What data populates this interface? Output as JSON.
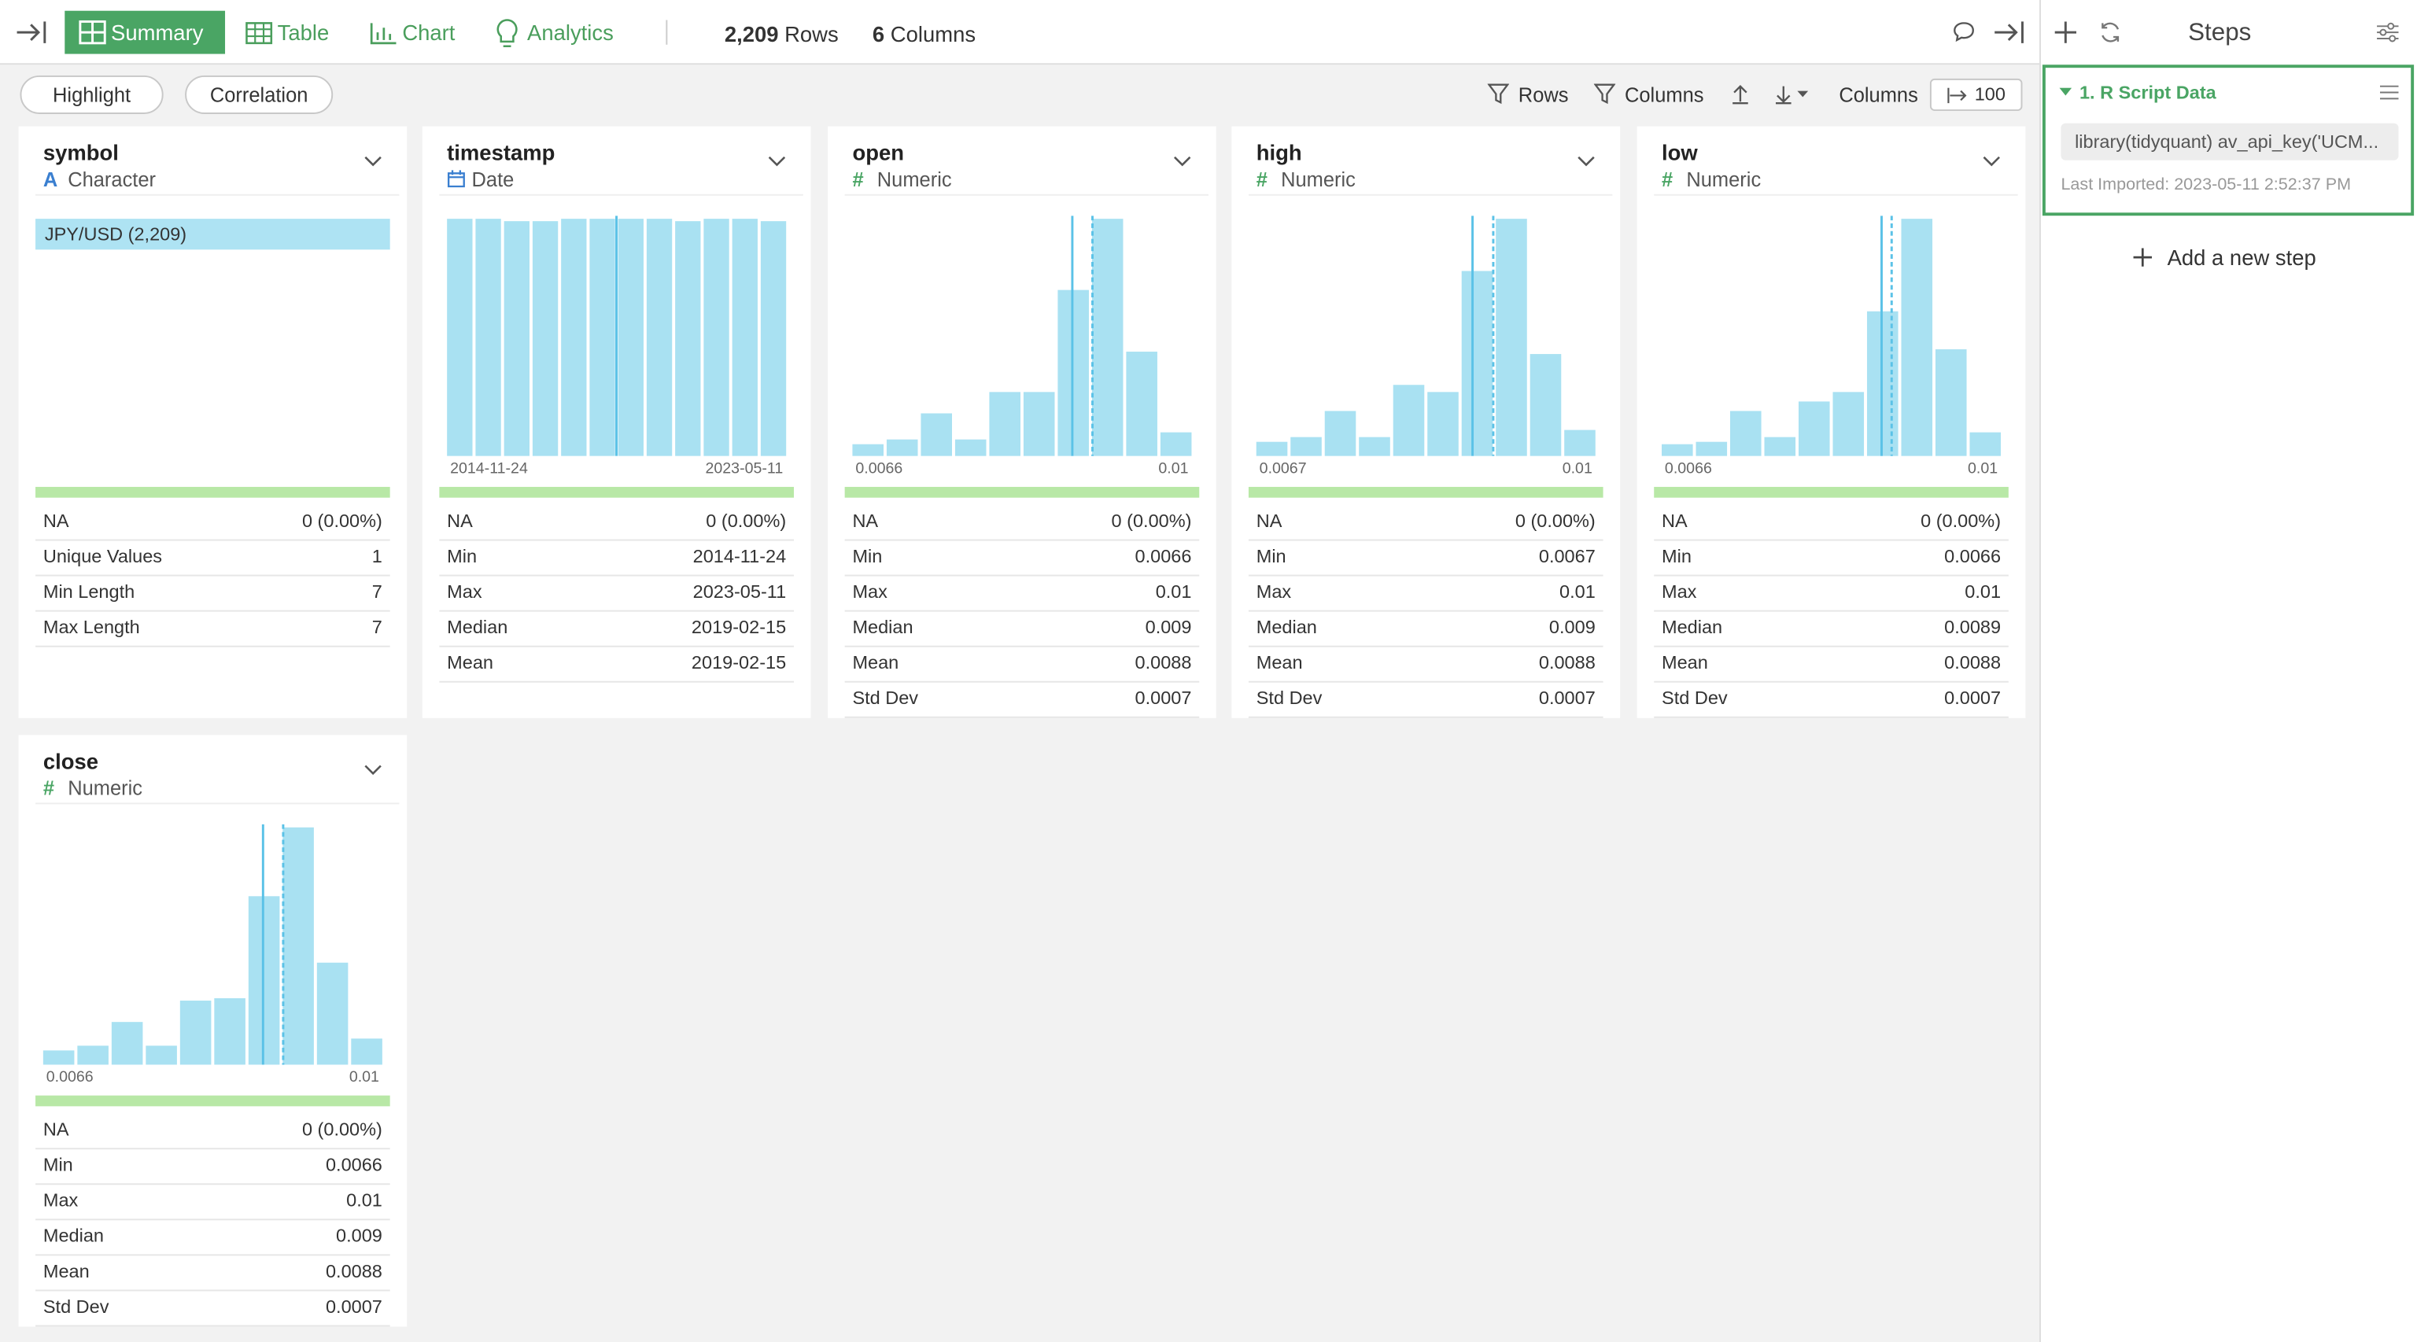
{
  "toolbar": {
    "tabs": [
      "Summary",
      "Table",
      "Chart",
      "Analytics"
    ],
    "rows_count": "2,209",
    "rows_label": "Rows",
    "columns_count": "6",
    "columns_label": "Columns"
  },
  "filter_bar": {
    "buttons": [
      "Highlight",
      "Correlation"
    ],
    "rows": "Rows",
    "columns": "Columns",
    "columns_label": "Columns",
    "columns_limit": "100"
  },
  "steps_panel": {
    "title": "Steps",
    "step": "1. R Script Data",
    "code": "library(tidyquant) av_api_key('UCM...",
    "last_imported": "Last Imported: 2023-05-11 2:52:37 PM",
    "add_step": "Add a new step"
  },
  "columns": [
    {
      "name": "symbol",
      "type": "Character",
      "type_icon": "A",
      "category": "JPY/USD (2,209)",
      "stats": [
        [
          "NA",
          "0 (0.00%)"
        ],
        [
          "Unique Values",
          "1"
        ],
        [
          "Min Length",
          "7"
        ],
        [
          "Max Length",
          "7"
        ]
      ]
    },
    {
      "name": "timestamp",
      "type": "Date",
      "histogram": [
        100,
        100,
        99,
        99,
        100,
        100,
        100,
        100,
        99,
        100,
        100,
        99
      ],
      "axis": [
        "2014-11-24",
        "2023-05-11"
      ],
      "stats": [
        [
          "NA",
          "0 (0.00%)"
        ],
        [
          "Min",
          "2014-11-24"
        ],
        [
          "Max",
          "2023-05-11"
        ],
        [
          "Median",
          "2019-02-15"
        ],
        [
          "Mean",
          "2019-02-15"
        ]
      ]
    },
    {
      "name": "open",
      "type": "Numeric",
      "type_icon": "#",
      "histogram": [
        5,
        7,
        18,
        7,
        27,
        27,
        70,
        100,
        44,
        10
      ],
      "axis": [
        "0.0066",
        "0.01"
      ],
      "stats": [
        [
          "NA",
          "0 (0.00%)"
        ],
        [
          "Min",
          "0.0066"
        ],
        [
          "Max",
          "0.01"
        ],
        [
          "Median",
          "0.009"
        ],
        [
          "Mean",
          "0.0088"
        ],
        [
          "Std Dev",
          "0.0007"
        ]
      ]
    },
    {
      "name": "high",
      "type": "Numeric",
      "type_icon": "#",
      "histogram": [
        6,
        8,
        19,
        8,
        30,
        27,
        78,
        100,
        43,
        11
      ],
      "axis": [
        "0.0067",
        "0.01"
      ],
      "stats": [
        [
          "NA",
          "0 (0.00%)"
        ],
        [
          "Min",
          "0.0067"
        ],
        [
          "Max",
          "0.01"
        ],
        [
          "Median",
          "0.009"
        ],
        [
          "Mean",
          "0.0088"
        ],
        [
          "Std Dev",
          "0.0007"
        ]
      ]
    },
    {
      "name": "low",
      "type": "Numeric",
      "type_icon": "#",
      "histogram": [
        5,
        6,
        19,
        8,
        23,
        27,
        61,
        100,
        45,
        10
      ],
      "axis": [
        "0.0066",
        "0.01"
      ],
      "stats": [
        [
          "NA",
          "0 (0.00%)"
        ],
        [
          "Min",
          "0.0066"
        ],
        [
          "Max",
          "0.01"
        ],
        [
          "Median",
          "0.0089"
        ],
        [
          "Mean",
          "0.0088"
        ],
        [
          "Std Dev",
          "0.0007"
        ]
      ]
    },
    {
      "name": "close",
      "type": "Numeric",
      "type_icon": "#",
      "histogram": [
        6,
        8,
        18,
        8,
        27,
        28,
        71,
        100,
        43,
        11
      ],
      "axis": [
        "0.0066",
        "0.01"
      ],
      "stats": [
        [
          "NA",
          "0 (0.00%)"
        ],
        [
          "Min",
          "0.0066"
        ],
        [
          "Max",
          "0.01"
        ],
        [
          "Median",
          "0.009"
        ],
        [
          "Mean",
          "0.0088"
        ],
        [
          "Std Dev",
          "0.0007"
        ]
      ]
    }
  ]
}
